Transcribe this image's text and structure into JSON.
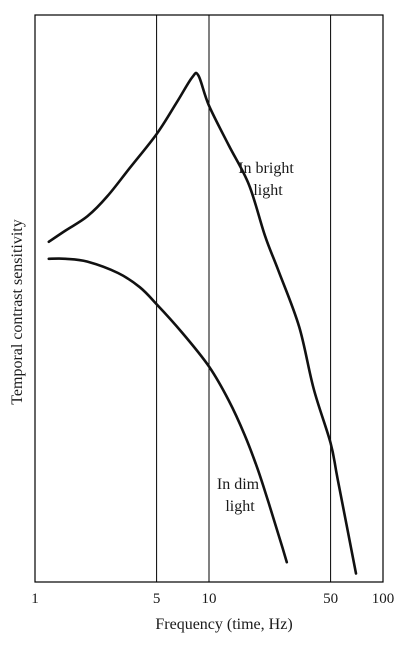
{
  "chart_data": {
    "type": "line",
    "title": "",
    "xlabel": "Frequency (time, Hz)",
    "ylabel": "Temporal contrast sensitivity",
    "x_scale": "log",
    "xlim": [
      1,
      100
    ],
    "x_ticks": [
      1,
      5,
      10,
      50,
      100
    ],
    "x_tick_labels": [
      "1",
      "5",
      "10",
      "50",
      "100"
    ],
    "vertical_gridlines_at": [
      5,
      10,
      50
    ],
    "y_ticks_shown": false,
    "ylim": [
      0,
      100
    ],
    "grid": false,
    "legend": "none (curves labeled directly)",
    "series": [
      {
        "name": "In bright light",
        "label_lines": [
          "In bright",
          "light"
        ],
        "x": [
          1.2,
          1.5,
          2,
          2.6,
          3.5,
          5,
          6.5,
          8,
          8.7,
          10,
          13,
          17,
          21,
          25,
          33,
          40,
          50,
          55,
          70
        ],
        "y": [
          60,
          62,
          64.5,
          68,
          73,
          79,
          84.5,
          89,
          89.3,
          84,
          77,
          70,
          61,
          55,
          45,
          34,
          24.5,
          18,
          1.5
        ]
      },
      {
        "name": "In dim light",
        "label_lines": [
          "In dim",
          "light"
        ],
        "x": [
          1.2,
          1.5,
          2,
          3,
          4,
          5,
          7,
          10,
          13,
          16,
          19,
          22,
          25,
          28
        ],
        "y": [
          57,
          57,
          56.5,
          54.5,
          52,
          49,
          44,
          38,
          32,
          26,
          20,
          14,
          8.5,
          3.5
        ]
      }
    ]
  }
}
